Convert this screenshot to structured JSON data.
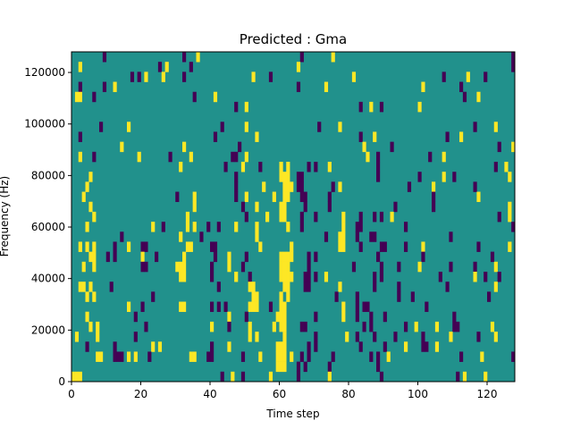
{
  "chart_data": {
    "type": "heatmap",
    "title": "Predicted : Gma",
    "xlabel": "Time step",
    "ylabel": "Frequency (Hz)",
    "xlim": [
      0,
      128
    ],
    "ylim": [
      0,
      128000
    ],
    "n_time_steps": 128,
    "n_freq_bins": 33,
    "xticks": [
      "0",
      "20",
      "40",
      "60",
      "80",
      "100",
      "120"
    ],
    "xtick_values": [
      0,
      20,
      40,
      60,
      80,
      100,
      120
    ],
    "yticks": [
      "0",
      "20000",
      "40000",
      "60000",
      "80000",
      "100000",
      "120000"
    ],
    "ytick_values": [
      0,
      20000,
      40000,
      60000,
      80000,
      100000,
      120000
    ],
    "values_legend": {
      "-1": "purple",
      "0": "teal",
      "1": "yellow"
    },
    "colors": {
      "neg": "#440154",
      "zero": "#21918c",
      "pos": "#fde725"
    },
    "default_value": 0,
    "rows_top_down": [
      {
        "pos": [
          36,
          75
        ],
        "neg": [
          9,
          32,
          66,
          127
        ]
      },
      {
        "pos": [
          2,
          27,
          65
        ],
        "neg": [
          25,
          34,
          127
        ]
      },
      {
        "pos": [
          21,
          26,
          52,
          81,
          114
        ],
        "neg": [
          17,
          19,
          32,
          57,
          107,
          119
        ]
      },
      {
        "pos": [
          12,
          73,
          101
        ],
        "neg": [
          2,
          9,
          65,
          112
        ]
      },
      {
        "pos": [
          1,
          2,
          41,
          117
        ],
        "neg": [
          6,
          35,
          113
        ]
      },
      {
        "pos": [
          50,
          86,
          100
        ],
        "neg": [
          47,
          83,
          89
        ]
      },
      {
        "pos": [],
        "neg": []
      },
      {
        "pos": [
          16,
          50,
          77,
          122
        ],
        "neg": [
          8,
          43,
          71,
          116
        ]
      },
      {
        "pos": [
          53,
          87,
          112
        ],
        "neg": [
          2,
          41,
          83,
          108
        ]
      },
      {
        "pos": [
          14,
          32,
          84,
          127
        ],
        "neg": [
          48,
          92,
          123
        ]
      },
      {
        "pos": [
          2,
          19,
          34,
          50,
          85,
          107
        ],
        "neg": [
          6,
          28,
          46,
          47,
          88,
          103
        ]
      },
      {
        "pos": [
          31,
          49,
          60,
          62,
          74,
          125
        ],
        "neg": [
          44,
          54,
          68,
          70,
          88,
          122
        ]
      },
      {
        "pos": [
          5,
          60,
          61,
          62,
          107,
          126
        ],
        "neg": [
          47,
          65,
          66,
          88,
          100,
          110
        ]
      },
      {
        "pos": [
          4,
          55,
          61,
          62,
          63,
          77,
          104
        ],
        "neg": [
          47,
          65,
          66,
          75,
          97,
          116
        ]
      },
      {
        "pos": [
          3,
          35,
          50,
          58,
          61,
          62,
          117
        ],
        "neg": [
          30,
          47,
          66,
          67,
          74,
          104
        ]
      },
      {
        "pos": [
          5,
          35,
          53,
          60,
          61,
          126
        ],
        "neg": [
          49,
          67,
          74,
          93,
          104
        ]
      },
      {
        "pos": [
          6,
          33,
          56,
          60,
          61,
          78,
          92,
          126
        ],
        "neg": [
          50,
          66,
          70,
          83,
          87,
          89,
          123
        ]
      },
      {
        "pos": [
          4,
          23,
          33,
          35,
          47,
          53,
          62,
          78
        ],
        "neg": [
          26,
          39,
          42,
          66,
          82,
          83,
          96,
          127
        ]
      },
      {
        "pos": [
          31,
          53,
          77,
          78
        ],
        "neg": [
          14,
          37,
          73,
          82,
          86,
          87,
          109
        ]
      },
      {
        "pos": [
          2,
          4,
          6,
          16,
          33,
          34,
          54,
          63,
          77,
          78,
          101,
          126
        ],
        "neg": [
          12,
          20,
          21,
          40,
          41,
          83,
          89,
          90,
          96,
          117
        ]
      },
      {
        "pos": [
          5,
          6,
          20,
          32,
          45,
          60,
          61,
          62,
          63
        ],
        "neg": [
          10,
          12,
          24,
          41,
          50,
          68,
          70,
          88,
          101,
          121
        ]
      },
      {
        "pos": [
          3,
          6,
          30,
          31,
          32,
          45,
          60,
          61,
          62,
          100,
          122
        ],
        "neg": [
          20,
          21,
          40,
          49,
          68,
          81,
          89,
          94,
          109,
          116
        ]
      },
      {
        "pos": [
          31,
          32,
          47,
          60,
          61,
          62,
          63,
          73,
          116
        ],
        "neg": [
          40,
          51,
          67,
          68,
          70,
          87,
          89,
          106,
          119,
          123
        ]
      },
      {
        "pos": [
          2,
          3,
          5,
          51,
          52,
          61,
          62,
          77,
          122
        ],
        "neg": [
          11,
          42,
          67,
          68,
          87,
          94,
          108
        ]
      },
      {
        "pos": [
          4,
          6,
          52,
          53,
          60,
          62
        ],
        "neg": [
          23,
          76,
          82,
          94,
          98,
          120
        ]
      },
      {
        "pos": [
          16,
          31,
          32,
          51,
          52,
          53,
          60,
          61,
          78
        ],
        "neg": [
          20,
          40,
          42,
          44,
          57,
          82,
          84,
          85,
          102
        ]
      },
      {
        "pos": [
          4,
          45,
          59,
          60,
          61,
          78
        ],
        "neg": [
          18,
          50,
          70,
          82,
          86,
          90,
          110
        ]
      },
      {
        "pos": [
          5,
          7,
          40,
          51,
          58,
          60,
          61,
          99,
          105,
          121
        ],
        "neg": [
          21,
          45,
          66,
          67,
          84,
          86,
          96,
          110,
          111
        ]
      },
      {
        "pos": [
          1,
          7,
          51,
          53,
          61,
          79,
          109,
          122
        ],
        "neg": [
          18,
          70,
          82,
          87,
          93,
          101,
          117
        ]
      },
      {
        "pos": [
          23,
          25,
          45,
          59,
          60,
          61,
          96,
          105
        ],
        "neg": [
          4,
          12,
          40,
          68,
          70,
          83,
          90,
          101,
          102
        ]
      },
      {
        "pos": [
          7,
          8,
          16,
          18,
          34,
          35,
          54,
          59,
          60,
          61,
          63,
          91,
          118
        ],
        "neg": [
          12,
          13,
          14,
          22,
          39,
          40,
          49,
          66,
          68,
          75,
          86,
          88,
          112,
          127
        ]
      },
      {
        "pos": [
          59,
          60,
          61
        ],
        "neg": [
          65,
          67,
          74,
          88
        ]
      },
      {
        "pos": [
          0,
          1,
          2,
          46,
          57,
          74,
          113,
          119
        ],
        "neg": [
          43,
          49,
          65,
          89,
          111
        ]
      }
    ]
  }
}
